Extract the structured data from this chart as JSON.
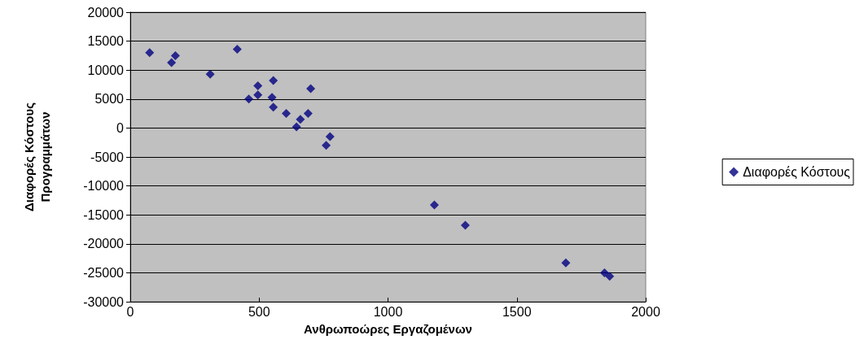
{
  "chart_data": {
    "type": "scatter",
    "xlabel": "Ανθρωποώρες Εργαζομένων",
    "ylabel": "Διαφορές Κόστους Προγραμμάτων",
    "legend": "right",
    "grid": "y",
    "marker": "diamond",
    "xlim": [
      0,
      2000
    ],
    "xticks": [
      0,
      500,
      1000,
      1500,
      2000
    ],
    "ylim": [
      -30000,
      20000
    ],
    "yticks": [
      -30000,
      -25000,
      -20000,
      -15000,
      -10000,
      -5000,
      0,
      5000,
      10000,
      15000,
      20000
    ],
    "series": [
      {
        "name": "Διαφορές Κόστους",
        "color": "#000080",
        "x": [
          75,
          160,
          175,
          310,
          415,
          460,
          495,
          495,
          555,
          550,
          555,
          605,
          645,
          660,
          690,
          700,
          760,
          775,
          1180,
          1300,
          1690,
          1840,
          1860
        ],
        "values": [
          13000,
          11300,
          12500,
          9300,
          13600,
          5000,
          7300,
          5700,
          8200,
          5300,
          3600,
          2500,
          200,
          1500,
          2500,
          6800,
          -3000,
          -1500,
          -13300,
          -16800,
          -23300,
          -25000,
          -25600
        ]
      }
    ]
  }
}
